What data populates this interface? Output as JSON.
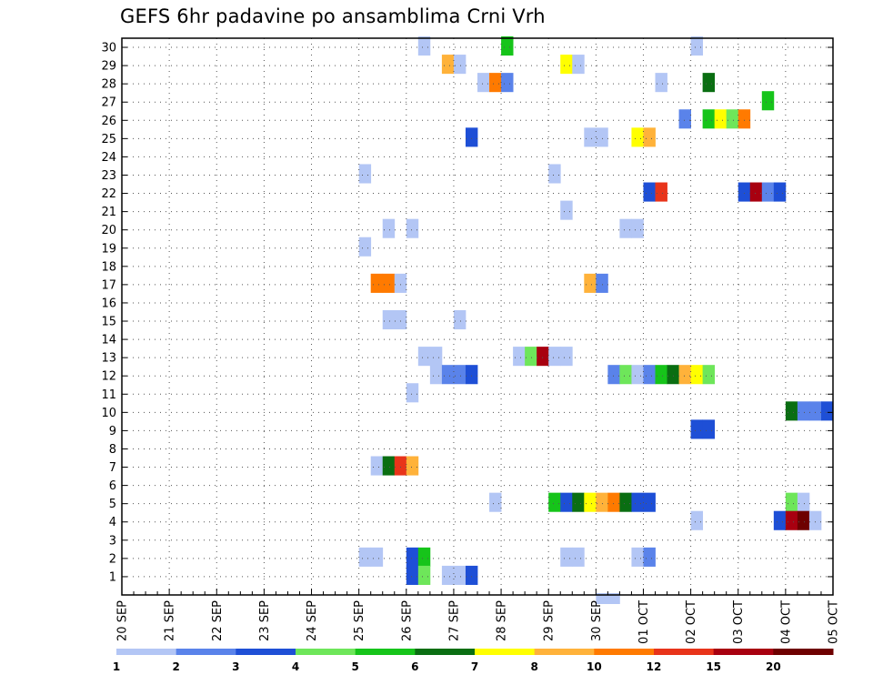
{
  "chart_data": {
    "type": "heatmap",
    "title": "GEFS 6hr padavine po ansamblima Crni Vrh",
    "y_ticks": [
      "1",
      "2",
      "3",
      "4",
      "5",
      "6",
      "7",
      "8",
      "9",
      "10",
      "11",
      "12",
      "13",
      "14",
      "15",
      "16",
      "17",
      "18",
      "19",
      "20",
      "21",
      "22",
      "23",
      "24",
      "25",
      "26",
      "27",
      "28",
      "29",
      "30"
    ],
    "x_ticks": [
      "20 SEP",
      "21 SEP",
      "22 SEP",
      "23 SEP",
      "24 SEP",
      "25 SEP",
      "26 SEP",
      "27 SEP",
      "28 SEP",
      "29 SEP",
      "30 SEP",
      "01 OCT",
      "02 OCT",
      "03 OCT",
      "04 OCT",
      "05 OCT"
    ],
    "ylim": [
      0,
      30
    ],
    "x_unit": "6-hour steps from 20 SEP 00Z",
    "grid": true,
    "colorscale": {
      "colors": [
        "#b3c6f5",
        "#5a83ea",
        "#1e4fd6",
        "#6ee65a",
        "#16c41a",
        "#0a6e12",
        "#ffff00",
        "#ffb23a",
        "#ff7a00",
        "#e8341a",
        "#a80010",
        "#6e0000"
      ],
      "labels": [
        "1",
        "2",
        "3",
        "4",
        "5",
        "6",
        "7",
        "8",
        "10",
        "12",
        "15",
        "20"
      ]
    },
    "cells": [
      {
        "m": 30,
        "s": [
          [
            25,
            0
          ]
        ]
      },
      {
        "m": 30,
        "s": [
          [
            32,
            4
          ]
        ]
      },
      {
        "m": 30,
        "s": [
          [
            48,
            0
          ]
        ]
      },
      {
        "m": 29,
        "s": [
          [
            27,
            7
          ],
          [
            28,
            0
          ]
        ]
      },
      {
        "m": 29,
        "s": [
          [
            37,
            6
          ],
          [
            38,
            0
          ]
        ]
      },
      {
        "m": 28,
        "s": [
          [
            30,
            0
          ],
          [
            31,
            8
          ],
          [
            32,
            1
          ]
        ]
      },
      {
        "m": 28,
        "s": [
          [
            45,
            0
          ]
        ]
      },
      {
        "m": 28,
        "s": [
          [
            49,
            5
          ]
        ]
      },
      {
        "m": 27,
        "s": [
          [
            54,
            4
          ]
        ]
      },
      {
        "m": 26,
        "s": [
          [
            47,
            1
          ],
          [
            49,
            4
          ],
          [
            50,
            6
          ],
          [
            51,
            3
          ],
          [
            52,
            8
          ]
        ]
      },
      {
        "m": 25,
        "s": [
          [
            29,
            2
          ]
        ]
      },
      {
        "m": 25,
        "s": [
          [
            39,
            0
          ],
          [
            40,
            0
          ]
        ]
      },
      {
        "m": 25,
        "s": [
          [
            43,
            6
          ],
          [
            44,
            7
          ]
        ]
      },
      {
        "m": 23,
        "s": [
          [
            20,
            0
          ]
        ]
      },
      {
        "m": 23,
        "s": [
          [
            36,
            0
          ]
        ]
      },
      {
        "m": 22,
        "s": [
          [
            44,
            2
          ],
          [
            45,
            9
          ]
        ]
      },
      {
        "m": 22,
        "s": [
          [
            52,
            2
          ],
          [
            53,
            10
          ],
          [
            54,
            1
          ],
          [
            55,
            2
          ]
        ]
      },
      {
        "m": 21,
        "s": [
          [
            37,
            0
          ]
        ]
      },
      {
        "m": 20,
        "s": [
          [
            22,
            0
          ]
        ]
      },
      {
        "m": 20,
        "s": [
          [
            24,
            0
          ]
        ]
      },
      {
        "m": 20,
        "s": [
          [
            42,
            0
          ],
          [
            43,
            0
          ]
        ]
      },
      {
        "m": 19,
        "s": [
          [
            20,
            0
          ]
        ]
      },
      {
        "m": 17,
        "s": [
          [
            21,
            8
          ],
          [
            22,
            8
          ],
          [
            23,
            0
          ]
        ]
      },
      {
        "m": 17,
        "s": [
          [
            39,
            7
          ],
          [
            40,
            1
          ]
        ]
      },
      {
        "m": 15,
        "s": [
          [
            22,
            0
          ],
          [
            23,
            0
          ]
        ]
      },
      {
        "m": 15,
        "s": [
          [
            28,
            0
          ]
        ]
      },
      {
        "m": 13,
        "s": [
          [
            25,
            0
          ],
          [
            26,
            0
          ]
        ]
      },
      {
        "m": 13,
        "s": [
          [
            33,
            0
          ],
          [
            34,
            3
          ],
          [
            35,
            10
          ],
          [
            36,
            0
          ],
          [
            37,
            0
          ]
        ]
      },
      {
        "m": 12,
        "s": [
          [
            26,
            0
          ],
          [
            27,
            1
          ],
          [
            28,
            1
          ],
          [
            29,
            2
          ]
        ]
      },
      {
        "m": 12,
        "s": [
          [
            41,
            1
          ],
          [
            42,
            3
          ],
          [
            43,
            0
          ],
          [
            44,
            1
          ],
          [
            45,
            4
          ],
          [
            46,
            5
          ],
          [
            47,
            7
          ],
          [
            48,
            6
          ],
          [
            49,
            3
          ]
        ]
      },
      {
        "m": 11,
        "s": [
          [
            24,
            0
          ]
        ]
      },
      {
        "m": 10,
        "s": [
          [
            56,
            5
          ],
          [
            57,
            1
          ],
          [
            58,
            1
          ],
          [
            59,
            2
          ]
        ]
      },
      {
        "m": 9,
        "s": [
          [
            48,
            2
          ],
          [
            49,
            2
          ]
        ]
      },
      {
        "m": 7,
        "s": [
          [
            21,
            0
          ],
          [
            22,
            5
          ],
          [
            23,
            9
          ],
          [
            24,
            7
          ]
        ]
      },
      {
        "m": 5,
        "s": [
          [
            31,
            0
          ]
        ]
      },
      {
        "m": 5,
        "s": [
          [
            36,
            4
          ],
          [
            37,
            2
          ],
          [
            38,
            5
          ],
          [
            39,
            6
          ],
          [
            40,
            7
          ],
          [
            41,
            8
          ],
          [
            42,
            5
          ],
          [
            43,
            2
          ],
          [
            44,
            2
          ]
        ]
      },
      {
        "m": 5,
        "s": [
          [
            56,
            3
          ],
          [
            57,
            0
          ]
        ]
      },
      {
        "m": 4,
        "s": [
          [
            48,
            0
          ]
        ]
      },
      {
        "m": 4,
        "s": [
          [
            55,
            2
          ],
          [
            56,
            10
          ],
          [
            57,
            11
          ],
          [
            58,
            0
          ]
        ]
      },
      {
        "m": 2,
        "s": [
          [
            20,
            0
          ],
          [
            21,
            0
          ]
        ]
      },
      {
        "m": 2,
        "s": [
          [
            24,
            2
          ],
          [
            25,
            4
          ]
        ]
      },
      {
        "m": 2,
        "s": [
          [
            37,
            0
          ],
          [
            38,
            0
          ]
        ]
      },
      {
        "m": 2,
        "s": [
          [
            43,
            0
          ],
          [
            44,
            1
          ]
        ]
      },
      {
        "m": 1,
        "s": [
          [
            24,
            2
          ],
          [
            25,
            3
          ]
        ]
      },
      {
        "m": 1,
        "s": [
          [
            27,
            0
          ],
          [
            28,
            0
          ],
          [
            29,
            2
          ]
        ]
      },
      {
        "m": 0,
        "s": [
          [
            40,
            0
          ],
          [
            41,
            0
          ]
        ]
      }
    ]
  }
}
